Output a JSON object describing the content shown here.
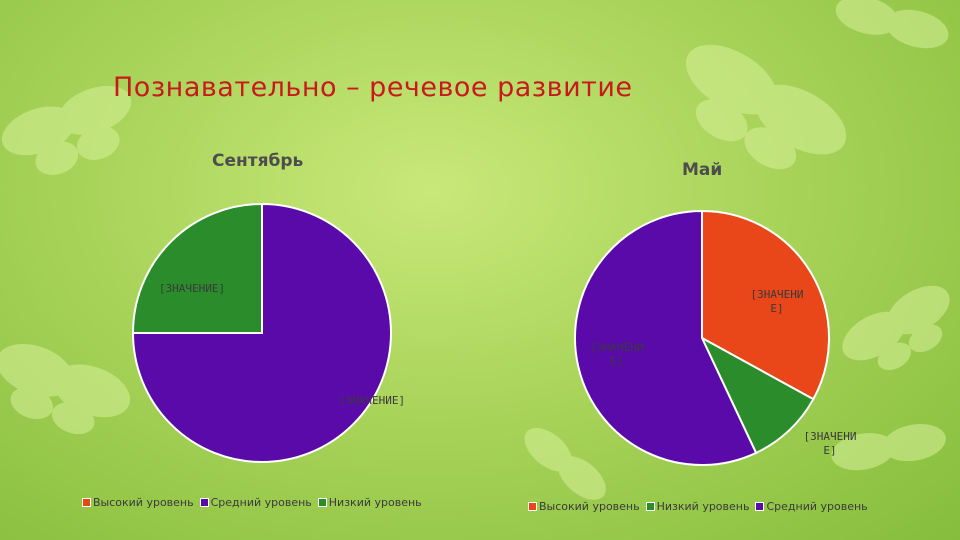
{
  "slide_title": "Познавательно – речевое развитие",
  "colors": {
    "high": "#e9461a",
    "medium": "#5a0aa8",
    "low": "#2a8c2a"
  },
  "chart_data": [
    {
      "type": "pie",
      "title": "Сентябрь",
      "slices": [
        {
          "name": "Высокий уровень",
          "value": 0,
          "label": "",
          "color": "#e9461a"
        },
        {
          "name": "Средний уровень",
          "value": 75,
          "label": "[ЗНАЧЕНИЕ]",
          "color": "#5a0aa8"
        },
        {
          "name": "Низкий уровень",
          "value": 25,
          "label": "[ЗНАЧЕНИЕ]",
          "color": "#2a8c2a"
        }
      ],
      "legend": [
        "Высокий уровень",
        "Средний уровень",
        "Низкий уровень"
      ],
      "legend_position": "bottom"
    },
    {
      "type": "pie",
      "title": "Май",
      "slices": [
        {
          "name": "Высокий уровень",
          "value": 33,
          "label": "[ЗНАЧЕНИ Е]",
          "color": "#e9461a"
        },
        {
          "name": "Низкий уровень",
          "value": 10,
          "label": "[ЗНАЧЕНИ Е]",
          "color": "#2a8c2a"
        },
        {
          "name": "Средний уровень",
          "value": 57,
          "label": "[ЗНАЧЕНИ Е]",
          "color": "#5a0aa8"
        }
      ],
      "legend": [
        "Высокий уровень",
        "Низкий уровень",
        "Средний уровень"
      ],
      "legend_position": "bottom"
    }
  ]
}
